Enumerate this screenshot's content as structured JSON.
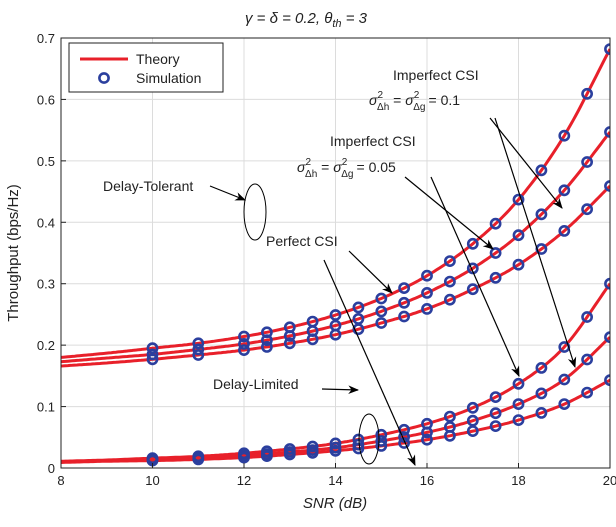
{
  "chart_data": {
    "type": "line",
    "title": "γ = δ = 0.2, θ",
    "title_sub": "th",
    "title_tail": " = 3",
    "xlabel": "SNR (dB)",
    "ylabel": "Throughput  (bps/Hz)",
    "xlim": [
      8,
      20
    ],
    "ylim": [
      0,
      0.7
    ],
    "x_ticks": [
      8,
      10,
      12,
      14,
      16,
      18,
      20
    ],
    "x_tick_labels": [
      "8",
      "10",
      "12",
      "14",
      "16",
      "18",
      "20"
    ],
    "y_ticks": [
      0,
      0.1,
      0.2,
      0.3,
      0.4,
      0.5,
      0.6,
      0.7
    ],
    "y_tick_labels": [
      "0",
      "0.1",
      "0.2",
      "0.3",
      "0.4",
      "0.5",
      "0.6",
      "0.7"
    ],
    "grid": true,
    "legend": {
      "placement": "top-left",
      "entries": [
        {
          "label": "Theory",
          "style": "line",
          "color": "#e8202a"
        },
        {
          "label": "Simulation",
          "style": "marker",
          "color": "#2b3f9e"
        }
      ]
    },
    "colors": {
      "theory": "#e8202a",
      "simulation": "#2b3f9e"
    },
    "simulation_x": [
      10,
      11,
      12,
      12.5,
      13,
      13.5,
      14,
      14.5,
      15,
      15.5,
      16,
      16.5,
      17,
      17.5,
      18,
      18.5,
      19,
      19.5,
      20
    ],
    "series": [
      {
        "group": "delay-tolerant",
        "csi": "perfect",
        "x": [
          8,
          9,
          10,
          11,
          12,
          13,
          14,
          15,
          16,
          17,
          18,
          19,
          20
        ],
        "values": [
          0.18,
          0.187,
          0.195,
          0.203,
          0.214,
          0.229,
          0.249,
          0.276,
          0.313,
          0.365,
          0.437,
          0.541,
          0.682
        ]
      },
      {
        "group": "delay-tolerant",
        "csi": "imperfect-0.05",
        "x": [
          8,
          9,
          10,
          11,
          12,
          13,
          14,
          15,
          16,
          17,
          18,
          19,
          20
        ],
        "values": [
          0.173,
          0.179,
          0.185,
          0.193,
          0.202,
          0.215,
          0.232,
          0.255,
          0.285,
          0.325,
          0.379,
          0.452,
          0.547
        ]
      },
      {
        "group": "delay-tolerant",
        "csi": "imperfect-0.1",
        "x": [
          8,
          9,
          10,
          11,
          12,
          13,
          14,
          15,
          16,
          17,
          18,
          19,
          20
        ],
        "values": [
          0.166,
          0.171,
          0.177,
          0.184,
          0.192,
          0.203,
          0.217,
          0.236,
          0.259,
          0.291,
          0.331,
          0.386,
          0.459
        ]
      },
      {
        "group": "delay-limited",
        "csi": "perfect",
        "x": [
          8,
          9,
          10,
          11,
          12,
          13,
          14,
          15,
          16,
          17,
          18,
          19,
          20
        ],
        "values": [
          0.011,
          0.013,
          0.016,
          0.019,
          0.024,
          0.031,
          0.04,
          0.054,
          0.072,
          0.098,
          0.137,
          0.197,
          0.3
        ]
      },
      {
        "group": "delay-limited",
        "csi": "imperfect-0.05",
        "x": [
          8,
          9,
          10,
          11,
          12,
          13,
          14,
          15,
          16,
          17,
          18,
          19,
          20
        ],
        "values": [
          0.01,
          0.012,
          0.014,
          0.016,
          0.02,
          0.026,
          0.033,
          0.044,
          0.058,
          0.077,
          0.104,
          0.144,
          0.213
        ]
      },
      {
        "group": "delay-limited",
        "csi": "imperfect-0.1",
        "x": [
          8,
          9,
          10,
          11,
          12,
          13,
          14,
          15,
          16,
          17,
          18,
          19,
          20
        ],
        "values": [
          0.009,
          0.011,
          0.012,
          0.014,
          0.017,
          0.022,
          0.028,
          0.036,
          0.046,
          0.06,
          0.078,
          0.104,
          0.143
        ]
      }
    ],
    "annotations": [
      {
        "id": "delay-tolerant",
        "text": "Delay-Tolerant"
      },
      {
        "id": "delay-limited",
        "text": "Delay-Limited"
      },
      {
        "id": "perfect",
        "text": "Perfect CSI"
      },
      {
        "id": "imperfect-005",
        "text": "Imperfect CSI",
        "equation": "= 0.05"
      },
      {
        "id": "imperfect-01",
        "text": "Imperfect CSI",
        "equation": "= 0.1"
      }
    ]
  }
}
